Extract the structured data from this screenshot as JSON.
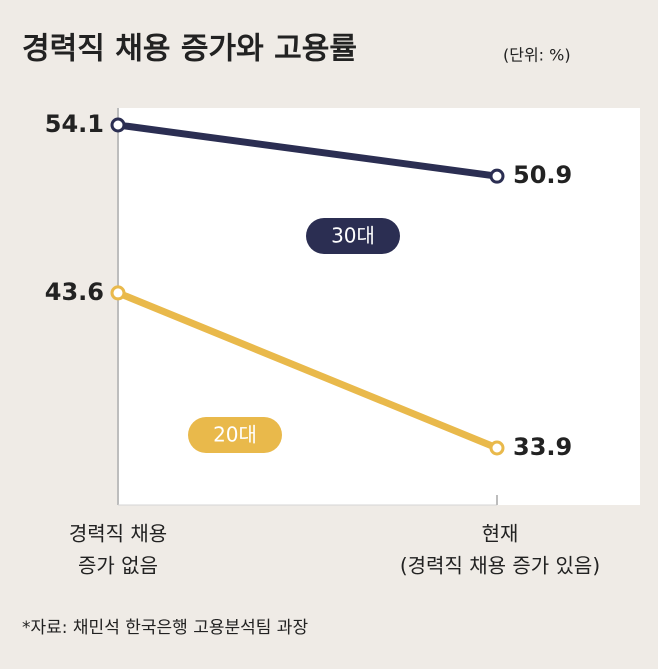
{
  "chart_data": {
    "type": "line",
    "title": "경력직 채용 증가와 고용률",
    "subtitle": "(단위: %)",
    "categories": [
      [
        "경력직 채용",
        "증가 없음"
      ],
      [
        "현재",
        "(경력직 채용 증가 있음)"
      ]
    ],
    "series": [
      {
        "name": "30대",
        "color": "#2b2e52",
        "values": [
          54.1,
          50.9
        ]
      },
      {
        "name": "20대",
        "color": "#e9b94b",
        "values": [
          43.6,
          33.9
        ]
      }
    ],
    "source": "*자료: 채민석 한국은행 고용분석팀 과장"
  }
}
